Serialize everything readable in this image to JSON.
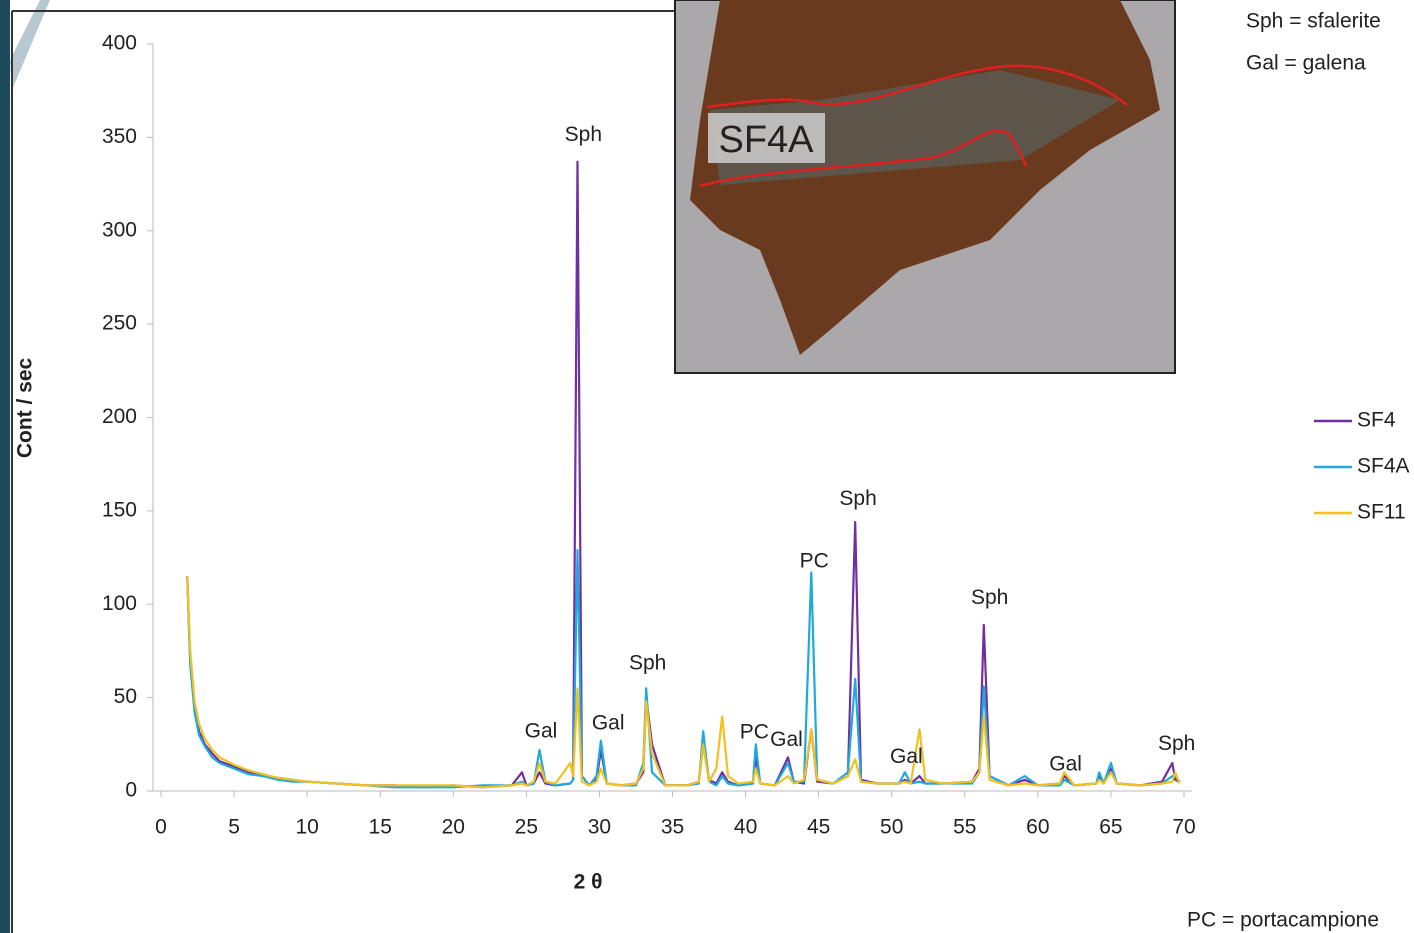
{
  "chart_data": {
    "type": "line",
    "y_label": "Cont / sec",
    "x_label": "2 θ",
    "xlim": [
      0,
      70
    ],
    "xticks": [
      0,
      5,
      10,
      15,
      20,
      25,
      30,
      35,
      40,
      45,
      50,
      55,
      60,
      65,
      70
    ],
    "ylim": [
      0,
      400
    ],
    "yticks": [
      0,
      50,
      100,
      150,
      200,
      250,
      300,
      350,
      400
    ],
    "grid": false,
    "legend": "right",
    "x": [
      1.8,
      2.0,
      2.3,
      2.6,
      3,
      3.5,
      4,
      5,
      6,
      7,
      8,
      9,
      10,
      12,
      14,
      16,
      18,
      20,
      22,
      24,
      24.7,
      25,
      25.5,
      25.9,
      26.3,
      27,
      28,
      28.2,
      28.5,
      28.8,
      29.3,
      29.8,
      30.1,
      30.5,
      31.5,
      32.5,
      33.0,
      33.2,
      33.6,
      34.5,
      36,
      36.8,
      37.1,
      37.5,
      38.0,
      38.4,
      38.8,
      39.5,
      40.5,
      40.7,
      41.0,
      42,
      42.9,
      43.3,
      44.0,
      44.5,
      44.9,
      46,
      47.0,
      47.5,
      47.9,
      49,
      50.5,
      50.9,
      51.3,
      51.9,
      52.3,
      53.5,
      55.5,
      56.0,
      56.3,
      56.7,
      58,
      59.1,
      60,
      61.5,
      61.8,
      62.5,
      64,
      64.2,
      64.5,
      65.0,
      65.4,
      67,
      68.5,
      69.2,
      69.4,
      69.7
    ],
    "series": [
      {
        "name": "SF4",
        "color": "#7030a0",
        "values": [
          115,
          70,
          45,
          32,
          25,
          20,
          16,
          13,
          10,
          8,
          7,
          6,
          5,
          4,
          3,
          3,
          2,
          3,
          2,
          3,
          10,
          3,
          4,
          10,
          4,
          3,
          4,
          6,
          337,
          8,
          3,
          6,
          22,
          4,
          3,
          4,
          10,
          50,
          25,
          3,
          3,
          5,
          25,
          6,
          4,
          10,
          5,
          3,
          4,
          18,
          4,
          3,
          18,
          5,
          4,
          33,
          5,
          4,
          8,
          144,
          6,
          4,
          4,
          6,
          4,
          8,
          4,
          4,
          5,
          12,
          89,
          8,
          3,
          6,
          3,
          4,
          8,
          3,
          4,
          8,
          4,
          12,
          4,
          3,
          5,
          15,
          6,
          5
        ]
      },
      {
        "name": "SF4A",
        "color": "#1fa9de",
        "values": [
          115,
          68,
          42,
          30,
          24,
          18,
          15,
          12,
          9,
          8,
          6,
          5,
          5,
          4,
          3,
          2,
          2,
          2,
          3,
          3,
          5,
          3,
          4,
          22,
          5,
          3,
          4,
          6,
          129,
          8,
          3,
          8,
          27,
          4,
          3,
          3,
          15,
          55,
          10,
          3,
          3,
          4,
          32,
          5,
          3,
          8,
          4,
          3,
          4,
          25,
          4,
          3,
          15,
          5,
          5,
          117,
          6,
          4,
          10,
          60,
          5,
          4,
          4,
          10,
          4,
          5,
          4,
          4,
          4,
          10,
          56,
          8,
          3,
          8,
          3,
          3,
          6,
          3,
          4,
          10,
          4,
          15,
          4,
          3,
          4,
          8,
          8,
          5
        ]
      },
      {
        "name": "SF11",
        "color": "#f2c01f",
        "values": [
          115,
          75,
          48,
          36,
          28,
          22,
          18,
          14,
          11,
          9,
          7,
          6,
          5,
          4,
          3,
          3,
          3,
          3,
          2,
          3,
          4,
          3,
          5,
          15,
          5,
          4,
          15,
          8,
          55,
          5,
          3,
          5,
          12,
          4,
          3,
          4,
          12,
          48,
          20,
          3,
          3,
          5,
          25,
          5,
          12,
          40,
          8,
          4,
          5,
          12,
          4,
          3,
          8,
          4,
          6,
          33,
          6,
          4,
          8,
          17,
          5,
          4,
          4,
          5,
          4,
          33,
          6,
          4,
          5,
          10,
          40,
          6,
          3,
          4,
          3,
          4,
          10,
          3,
          4,
          6,
          4,
          10,
          4,
          3,
          4,
          5,
          10,
          4
        ]
      }
    ],
    "annotations": [
      {
        "text": "Sph",
        "x": 28.9,
        "y": 351
      },
      {
        "text": "Gal",
        "x": 26.0,
        "y": 31.6
      },
      {
        "text": "Gal",
        "x": 30.6,
        "y": 36
      },
      {
        "text": "Sph",
        "x": 33.3,
        "y": 68
      },
      {
        "text": "PC",
        "x": 40.6,
        "y": 31
      },
      {
        "text": "Gal",
        "x": 42.8,
        "y": 27
      },
      {
        "text": "PC",
        "x": 44.7,
        "y": 122.6
      },
      {
        "text": "Sph",
        "x": 47.7,
        "y": 156
      },
      {
        "text": "Sph",
        "x": 56.7,
        "y": 103
      },
      {
        "text": "Gal",
        "x": 51.0,
        "y": 18
      },
      {
        "text": "Gal",
        "x": 61.9,
        "y": 14
      },
      {
        "text": "Sph",
        "x": 69.5,
        "y": 25
      }
    ],
    "notes": [
      "Sph = sfalerite",
      "Gal = galena",
      "PC = portacampione"
    ],
    "inset_label": "SF4A"
  }
}
